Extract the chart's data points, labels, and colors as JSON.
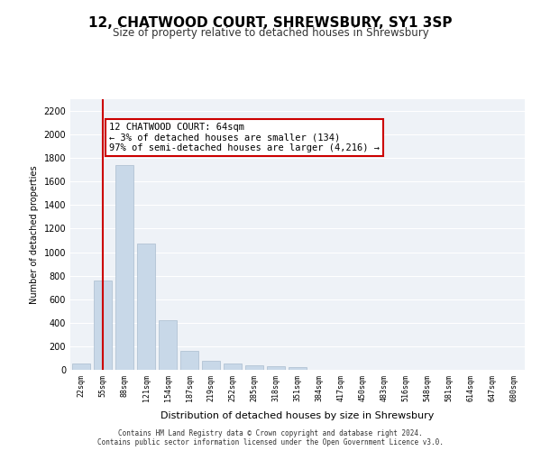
{
  "title": "12, CHATWOOD COURT, SHREWSBURY, SY1 3SP",
  "subtitle": "Size of property relative to detached houses in Shrewsbury",
  "xlabel": "Distribution of detached houses by size in Shrewsbury",
  "ylabel": "Number of detached properties",
  "bar_color": "#c8d8e8",
  "bar_edgecolor": "#aabcce",
  "background_color": "#eef2f7",
  "grid_color": "#ffffff",
  "vline_color": "#cc0000",
  "vline_x": 1,
  "annotation_text": "12 CHATWOOD COURT: 64sqm\n← 3% of detached houses are smaller (134)\n97% of semi-detached houses are larger (4,216) →",
  "annotation_box_edgecolor": "#cc0000",
  "annotation_box_facecolor": "#ffffff",
  "footer_text": "Contains HM Land Registry data © Crown copyright and database right 2024.\nContains public sector information licensed under the Open Government Licence v3.0.",
  "bin_labels": [
    "22sqm",
    "55sqm",
    "88sqm",
    "121sqm",
    "154sqm",
    "187sqm",
    "219sqm",
    "252sqm",
    "285sqm",
    "318sqm",
    "351sqm",
    "384sqm",
    "417sqm",
    "450sqm",
    "483sqm",
    "516sqm",
    "548sqm",
    "581sqm",
    "614sqm",
    "647sqm",
    "680sqm"
  ],
  "bar_heights": [
    55,
    760,
    1740,
    1070,
    420,
    160,
    80,
    50,
    40,
    30,
    20,
    0,
    0,
    0,
    0,
    0,
    0,
    0,
    0,
    0,
    0
  ],
  "ylim": [
    0,
    2300
  ],
  "yticks": [
    0,
    200,
    400,
    600,
    800,
    1000,
    1200,
    1400,
    1600,
    1800,
    2000,
    2200
  ]
}
